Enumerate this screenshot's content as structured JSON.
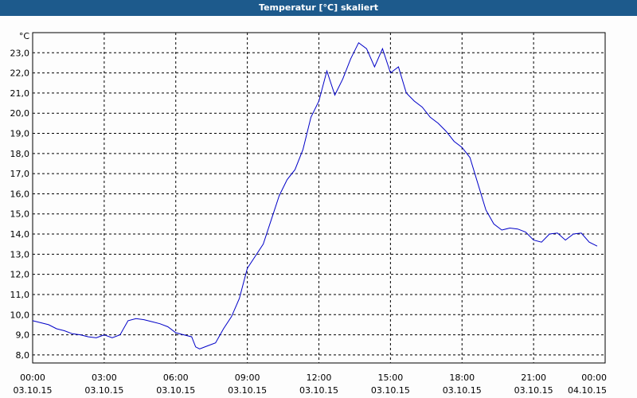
{
  "window": {
    "title": "Temperatur [°C] skaliert"
  },
  "chart_data": {
    "type": "line",
    "title": "Temperatur [°C] skaliert",
    "ylabel": "°C",
    "ylim": [
      7.6,
      24.0
    ],
    "y_ticks": [
      "8,0",
      "9,0",
      "10,0",
      "11,0",
      "12,0",
      "13,0",
      "14,0",
      "15,0",
      "16,0",
      "17,0",
      "18,0",
      "19,0",
      "20,0",
      "21,0",
      "22,0",
      "23,0"
    ],
    "x_range_hours": [
      0,
      24
    ],
    "x_ticks": [
      {
        "time": "00:00",
        "date": "03.10.15"
      },
      {
        "time": "03:00",
        "date": "03.10.15"
      },
      {
        "time": "06:00",
        "date": "03.10.15"
      },
      {
        "time": "09:00",
        "date": "03.10.15"
      },
      {
        "time": "12:00",
        "date": "03.10.15"
      },
      {
        "time": "15:00",
        "date": "03.10.15"
      },
      {
        "time": "18:00",
        "date": "03.10.15"
      },
      {
        "time": "21:00",
        "date": "03.10.15"
      },
      {
        "time": "00:00",
        "date": "04.10.15"
      }
    ],
    "grid": true,
    "colors": {
      "series": "#0000c8",
      "grid": "#000000",
      "title_bar": "#1d5a8c"
    },
    "series": [
      {
        "x": [
          "00:00",
          "00:20",
          "00:40",
          "01:00",
          "01:20",
          "01:40",
          "02:00",
          "02:20",
          "02:40",
          "03:00",
          "03:20",
          "03:40",
          "04:00",
          "04:20",
          "04:40",
          "05:00",
          "05:20",
          "05:40",
          "06:00",
          "06:20",
          "06:40",
          "06:50",
          "07:00",
          "07:20",
          "07:40",
          "08:00",
          "08:20",
          "08:40",
          "09:00",
          "09:20",
          "09:40",
          "10:00",
          "10:20",
          "10:40",
          "11:00",
          "11:20",
          "11:40",
          "12:00",
          "12:20",
          "12:40",
          "13:00",
          "13:20",
          "13:40",
          "14:00",
          "14:20",
          "14:40",
          "15:00",
          "15:20",
          "15:40",
          "16:00",
          "16:20",
          "16:40",
          "17:00",
          "17:20",
          "17:40",
          "18:00",
          "18:20",
          "18:40",
          "19:00",
          "19:20",
          "19:40",
          "20:00",
          "20:20",
          "20:40",
          "21:00",
          "21:20",
          "21:40",
          "22:00",
          "22:20",
          "22:40",
          "23:00",
          "23:20",
          "23:40"
        ],
        "values": [
          9.7,
          9.6,
          9.5,
          9.3,
          9.2,
          9.05,
          9.0,
          8.9,
          8.85,
          9.0,
          8.85,
          9.0,
          9.7,
          9.8,
          9.75,
          9.65,
          9.55,
          9.4,
          9.1,
          9.0,
          8.9,
          8.4,
          8.3,
          8.45,
          8.6,
          9.3,
          9.9,
          10.8,
          12.3,
          12.9,
          13.5,
          14.7,
          15.9,
          16.7,
          17.2,
          18.2,
          19.8,
          20.6,
          22.1,
          20.9,
          21.7,
          22.7,
          23.5,
          23.2,
          22.3,
          23.2,
          22.0,
          22.3,
          21.0,
          20.6,
          20.3,
          19.8,
          19.5,
          19.1,
          18.6,
          18.3,
          17.8,
          16.5,
          15.2,
          14.5,
          14.2,
          14.3,
          14.25,
          14.1,
          13.7,
          13.6,
          14.0,
          14.05,
          13.7,
          14.0,
          14.05,
          13.6,
          13.4
        ]
      }
    ]
  }
}
